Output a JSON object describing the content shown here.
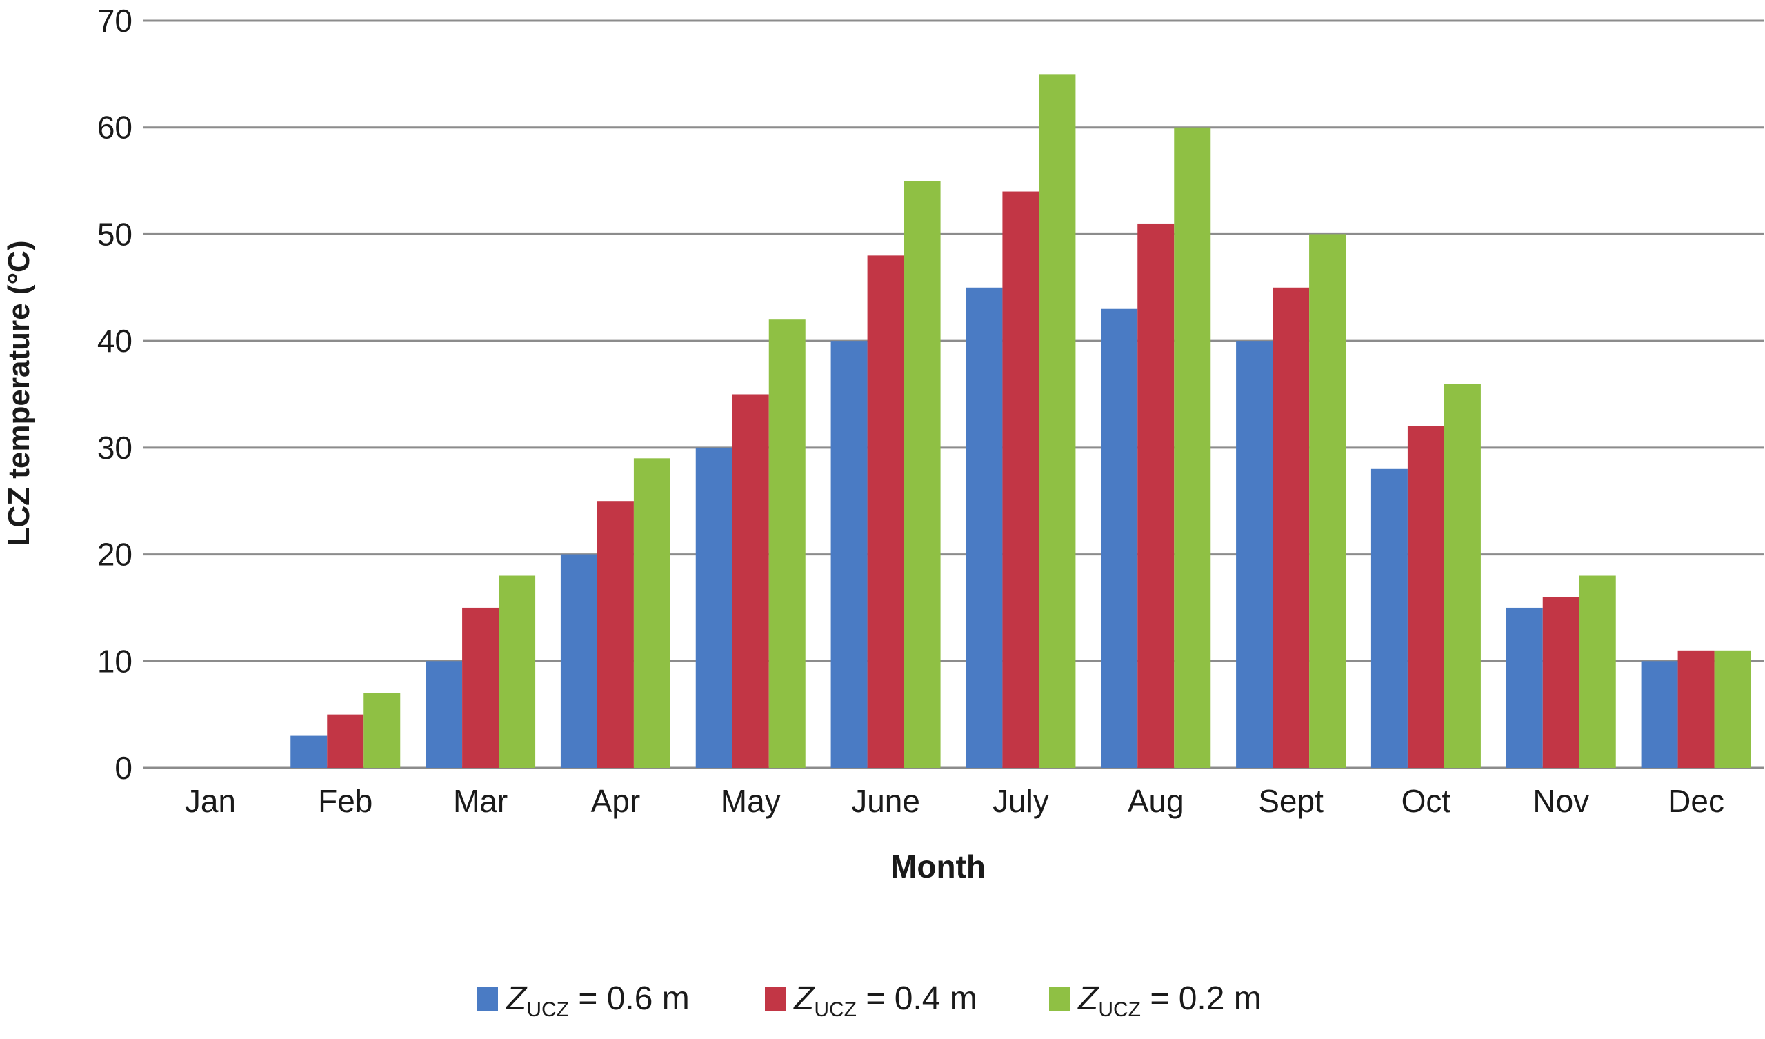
{
  "chart_data": {
    "type": "bar",
    "title": "",
    "xlabel": "Month",
    "ylabel": "LCZ temperature (°C)",
    "ylim": [
      0,
      70
    ],
    "yticks": [
      0,
      10,
      20,
      30,
      40,
      50,
      60,
      70
    ],
    "grid": "horizontal",
    "legend_position": "bottom-center",
    "categories": [
      "Jan",
      "Feb",
      "Mar",
      "Apr",
      "May",
      "June",
      "July",
      "Aug",
      "Sept",
      "Oct",
      "Nov",
      "Dec"
    ],
    "series": [
      {
        "name": "Z_UCZ = 0.6 m",
        "label_main": "Z",
        "label_sub": "UCZ",
        "label_rest": " = 0.6 m",
        "color": "#4a7bc4",
        "values": [
          0,
          3,
          10,
          20,
          30,
          40,
          45,
          43,
          40,
          28,
          15,
          10
        ]
      },
      {
        "name": "Z_UCZ = 0.4 m",
        "label_main": "Z",
        "label_sub": "UCZ",
        "label_rest": " = 0.4 m",
        "color": "#c23645",
        "values": [
          0,
          5,
          15,
          25,
          35,
          48,
          54,
          51,
          45,
          32,
          16,
          11
        ]
      },
      {
        "name": "Z_UCZ = 0.2 m",
        "label_main": "Z",
        "label_sub": "UCZ",
        "label_rest": " = 0.2 m",
        "color": "#8fc044",
        "values": [
          0,
          7,
          18,
          29,
          42,
          55,
          65,
          60,
          50,
          36,
          18,
          11
        ]
      }
    ]
  }
}
